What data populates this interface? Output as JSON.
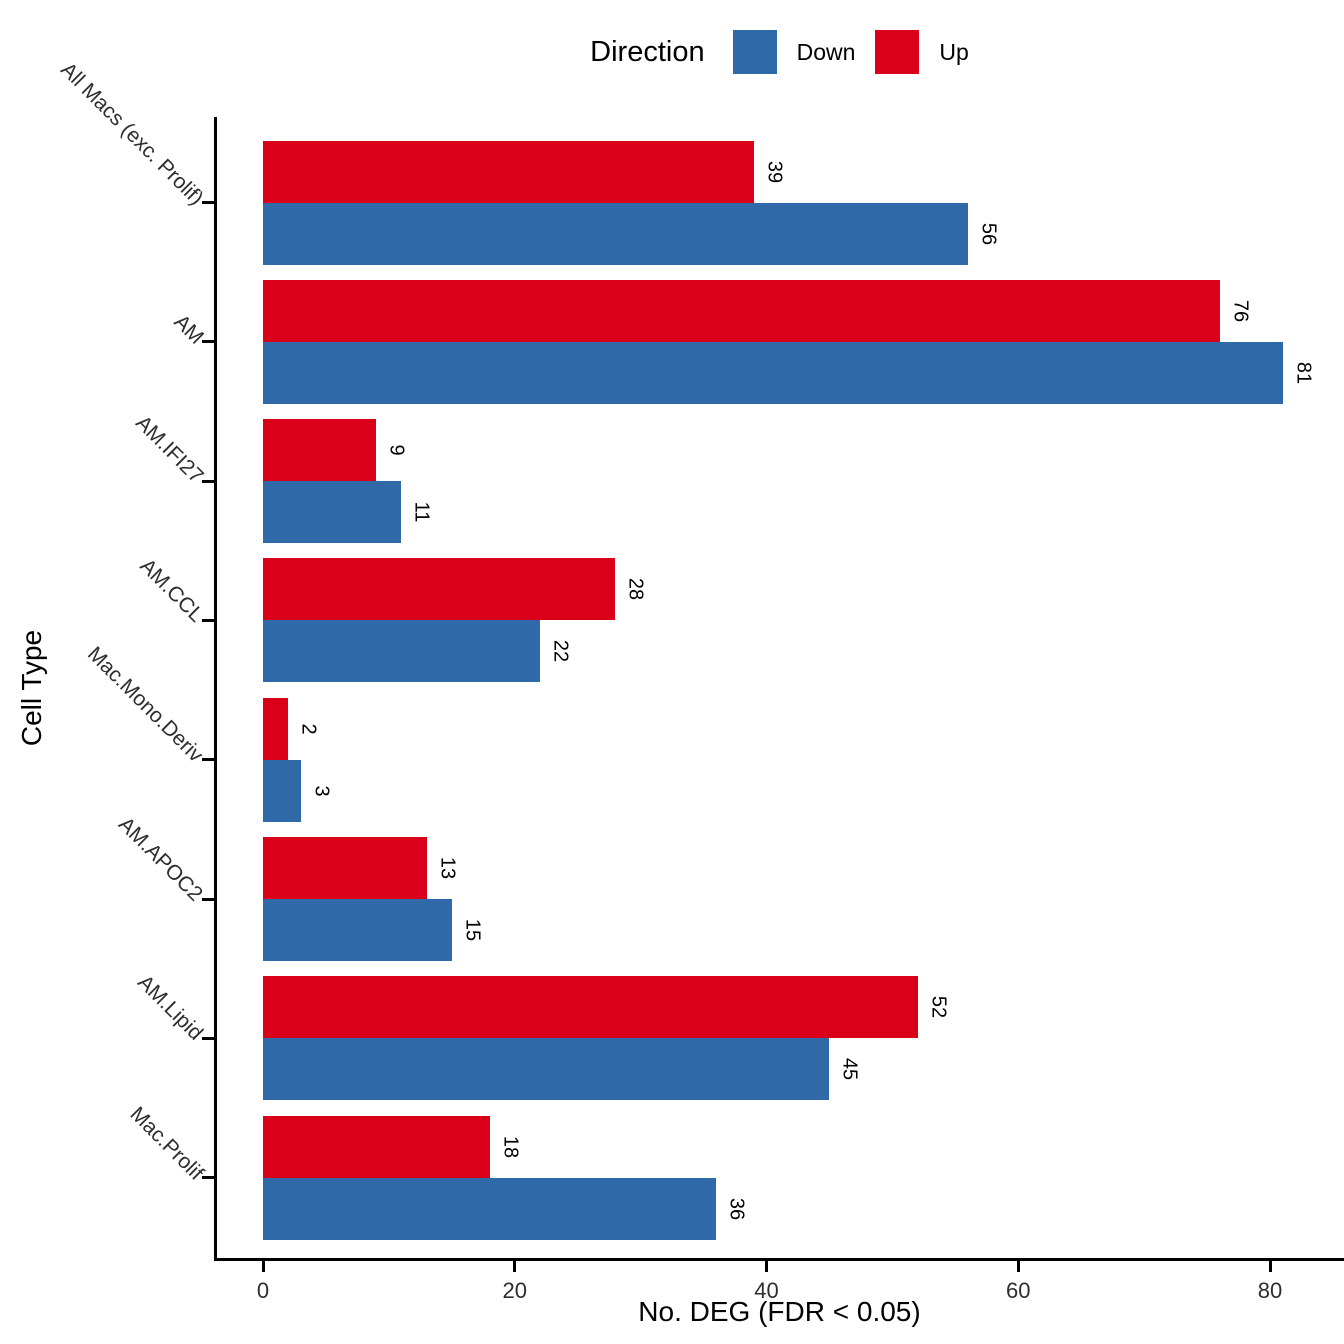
{
  "legend": {
    "title": "Direction",
    "items": [
      {
        "label": "Down",
        "color": "#2F69A7"
      },
      {
        "label": "Up",
        "color": "#DB001A"
      }
    ]
  },
  "chart_data": {
    "type": "bar",
    "orientation": "horizontal",
    "title": "",
    "xlabel": "No. DEG (FDR < 0.05)",
    "ylabel": "Cell Type",
    "categories": [
      "All Macs (exc. Prolif)",
      "AM",
      "AM.IFI27",
      "AM.CCL",
      "Mac.Mono.Deriv",
      "AM.APOC2",
      "AM.Lipid",
      "Mac.Prolif"
    ],
    "series": [
      {
        "name": "Down",
        "color": "#2F69A7",
        "values": [
          56,
          81,
          11,
          22,
          3,
          15,
          45,
          36
        ]
      },
      {
        "name": "Up",
        "color": "#DB001A",
        "values": [
          39,
          76,
          9,
          28,
          2,
          13,
          52,
          18
        ]
      }
    ],
    "row_order_top_to_bottom": [
      "Up",
      "Down"
    ],
    "value_labels_shown": true,
    "x_ticks": [
      0,
      20,
      40,
      60,
      80
    ],
    "xlim": [
      0,
      86
    ],
    "grid": "off",
    "legend_position": "top"
  }
}
